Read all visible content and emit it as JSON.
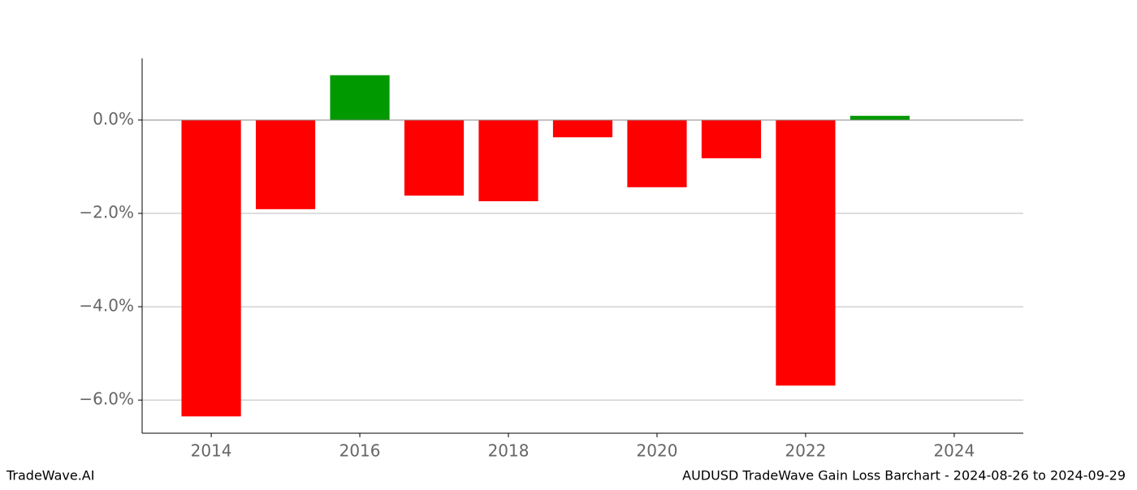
{
  "chart_data": {
    "type": "bar",
    "title": "AUDUSD TradeWave Gain Loss Barchart - 2024-08-26 to 2024-09-29",
    "watermark": "TradeWave.AI",
    "x": [
      2014,
      2015,
      2016,
      2017,
      2018,
      2019,
      2020,
      2021,
      2022,
      2023
    ],
    "values": [
      -6.35,
      -1.91,
      0.96,
      -1.62,
      -1.74,
      -0.37,
      -1.44,
      -0.82,
      -5.69,
      0.09
    ],
    "positive_color": "#009900",
    "negative_color": "#ff0000",
    "xlim": [
      2013.07,
      2024.93
    ],
    "xticks": [
      2014,
      2016,
      2018,
      2020,
      2022,
      2024
    ],
    "ylim": [
      -6.71,
      1.32
    ],
    "yticks": [
      {
        "value": 0,
        "label": "0.0%"
      },
      {
        "value": -2,
        "label": "−2.0%"
      },
      {
        "value": -4,
        "label": "−4.0%"
      },
      {
        "value": -6,
        "label": "−6.0%"
      }
    ],
    "grid": true
  }
}
